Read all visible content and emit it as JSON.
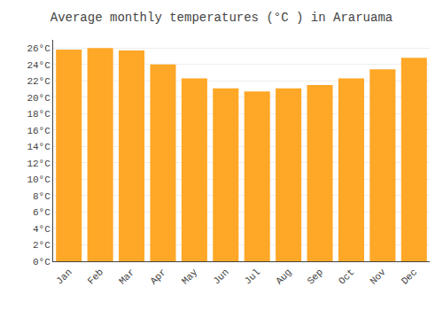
{
  "chart_data": {
    "type": "bar",
    "title": "Average monthly temperatures (°C ) in Araruama",
    "categories": [
      "Jan",
      "Feb",
      "Mar",
      "Apr",
      "May",
      "Jun",
      "Jul",
      "Aug",
      "Sep",
      "Oct",
      "Nov",
      "Dec"
    ],
    "values": [
      25.8,
      26.0,
      25.7,
      24.0,
      22.3,
      21.1,
      20.7,
      21.1,
      21.5,
      22.3,
      23.4,
      24.8
    ],
    "color": "#FFA726",
    "ylim": [
      0,
      27
    ],
    "yticks": [
      {
        "value": 0,
        "label": "0°C"
      },
      {
        "value": 2,
        "label": "2°C"
      },
      {
        "value": 4,
        "label": "4°C"
      },
      {
        "value": 6,
        "label": "6°C"
      },
      {
        "value": 8,
        "label": "8°C"
      },
      {
        "value": 10,
        "label": "10°C"
      },
      {
        "value": 12,
        "label": "12°C"
      },
      {
        "value": 14,
        "label": "14°C"
      },
      {
        "value": 16,
        "label": "16°C"
      },
      {
        "value": 18,
        "label": "18°C"
      },
      {
        "value": 20,
        "label": "20°C"
      },
      {
        "value": 22,
        "label": "22°C"
      },
      {
        "value": 24,
        "label": "24°C"
      },
      {
        "value": 26,
        "label": "26°C"
      }
    ],
    "grid": true
  }
}
